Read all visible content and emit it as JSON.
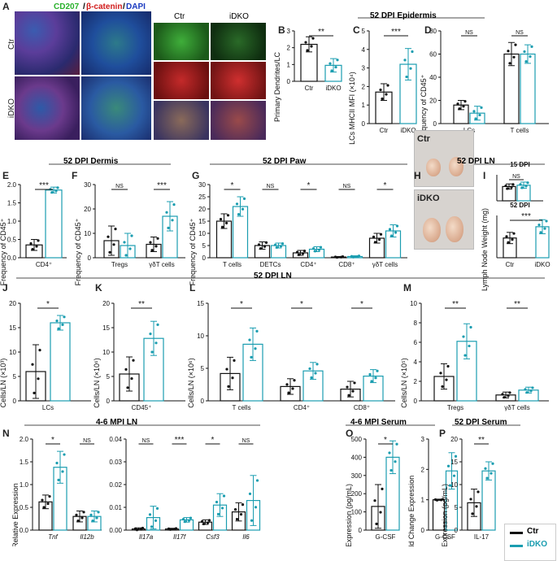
{
  "figure": {
    "panels": {
      "A": "A",
      "B": "B",
      "C": "C",
      "D": "D",
      "E": "E",
      "F": "F",
      "G": "G",
      "H": "H",
      "I": "I",
      "J": "J",
      "K": "K",
      "L": "L",
      "M": "M",
      "N": "N",
      "O": "O",
      "P": "P"
    },
    "section_headers": {
      "epidermis": "52 DPI Epidermis",
      "dermis": "52 DPI Dermis",
      "paw": "52 DPI Paw",
      "ln_h": "52 DPI LN",
      "ln_row": "52 DPI LN",
      "mpi_ln": "4-6 MPI LN",
      "mpi_serum": "4-6 MPI Serum",
      "serum_p": "52 DPI Serum"
    },
    "microscopy": {
      "stain_cd207": "CD207",
      "stain_bcat": "β-catenin",
      "stain_dapi": "DAPI",
      "row_ctr": "Ctr",
      "row_idko": "iDKO",
      "col_ctr": "Ctr",
      "col_idko": "iDKO"
    },
    "photos": {
      "ctr": "Ctr",
      "idko": "iDKO"
    },
    "legend": {
      "ctr": "Ctr",
      "idko": "iDKO",
      "ctr_color": "#111111",
      "idko_color": "#1a9db0"
    }
  },
  "chart_data": [
    {
      "id": "B",
      "type": "bar",
      "ylabel": "Primary Dendrites/LC",
      "ylim": [
        0,
        3
      ],
      "yticks": [
        0,
        1,
        2,
        3
      ],
      "categories": [
        "Ctr",
        "iDKO"
      ],
      "series": [
        {
          "name": "Ctr",
          "values": [
            2.2,
            null
          ]
        },
        {
          "name": "iDKO",
          "values": [
            null,
            0.95
          ]
        }
      ],
      "errors": [
        0.45,
        0.4
      ],
      "sig": [
        {
          "i": 0,
          "j": 1,
          "text": "**"
        }
      ]
    },
    {
      "id": "C",
      "type": "bar",
      "ylabel": "LCs MHCII MFI (×10⁴)",
      "ylim": [
        0,
        5
      ],
      "yticks": [
        0,
        1,
        2,
        3,
        4,
        5
      ],
      "categories": [
        "Ctr",
        "iDKO"
      ],
      "series": [
        {
          "name": "Ctr",
          "values": [
            1.7,
            null
          ]
        },
        {
          "name": "iDKO",
          "values": [
            null,
            3.2
          ]
        }
      ],
      "errors": [
        0.45,
        0.85
      ],
      "sig": [
        {
          "i": 0,
          "j": 1,
          "text": "***"
        }
      ]
    },
    {
      "id": "D",
      "type": "bar",
      "ylabel": "Frequency of CD45⁺",
      "ylim": [
        0,
        80
      ],
      "yticks": [
        0,
        20,
        40,
        60,
        80
      ],
      "categories": [
        "LCs",
        "T cells"
      ],
      "series": [
        {
          "name": "Ctr",
          "values": [
            16,
            60
          ]
        },
        {
          "name": "iDKO",
          "values": [
            9,
            60
          ]
        }
      ],
      "errors": [
        [
          4,
          10
        ],
        [
          6,
          8
        ]
      ],
      "sig": [
        {
          "cat": 0,
          "text": "NS"
        },
        {
          "cat": 1,
          "text": "NS"
        }
      ]
    },
    {
      "id": "E",
      "type": "bar",
      "ylabel": "Frequency of CD45⁺",
      "ylim": [
        0,
        2
      ],
      "yticks": [
        0.0,
        0.5,
        1.0,
        1.5,
        2.0
      ],
      "categories": [
        "CD4⁺"
      ],
      "series": [
        {
          "name": "Ctr",
          "values": [
            0.35
          ]
        },
        {
          "name": "iDKO",
          "values": [
            1.85
          ]
        }
      ],
      "errors": [
        [
          0.15
        ],
        [
          0.08
        ]
      ],
      "sig": [
        {
          "cat": 0,
          "text": "***"
        }
      ]
    },
    {
      "id": "F",
      "type": "bar",
      "ylabel": "Frequency of CD45⁺",
      "ylim": [
        0,
        30
      ],
      "yticks": [
        0,
        10,
        20,
        30
      ],
      "categories": [
        "Tregs",
        "γδT cells"
      ],
      "series": [
        {
          "name": "Ctr",
          "values": [
            7,
            5.5
          ]
        },
        {
          "name": "iDKO",
          "values": [
            5,
            17
          ]
        }
      ],
      "errors": [
        [
          6,
          3
        ],
        [
          5,
          6
        ]
      ],
      "sig": [
        {
          "cat": 0,
          "text": "NS"
        },
        {
          "cat": 1,
          "text": "***"
        }
      ]
    },
    {
      "id": "G",
      "type": "bar",
      "ylabel": "Frequency of CD45⁺",
      "ylim": [
        0,
        30
      ],
      "yticks": [
        0,
        5,
        10,
        15,
        20,
        25,
        30
      ],
      "categories": [
        "T cells",
        "DETCs",
        "CD4⁺",
        "CD8⁺",
        "γδT cells"
      ],
      "series": [
        {
          "name": "Ctr",
          "values": [
            15,
            5,
            2,
            0.3,
            8
          ]
        },
        {
          "name": "iDKO",
          "values": [
            21,
            5,
            3.5,
            0.5,
            11
          ]
        }
      ],
      "errors": [
        [
          3,
          1.5,
          1,
          0.2,
          2
        ],
        [
          4,
          1,
          1,
          0.3,
          2.5
        ]
      ],
      "sig": [
        {
          "cat": 0,
          "text": "*"
        },
        {
          "cat": 1,
          "text": "NS"
        },
        {
          "cat": 2,
          "text": "*"
        },
        {
          "cat": 3,
          "text": "NS"
        },
        {
          "cat": 4,
          "text": "*"
        }
      ]
    },
    {
      "id": "I15",
      "type": "bar",
      "title": "15 DPI",
      "ylim": [
        0,
        10
      ],
      "yticks": [],
      "categories": [
        ""
      ],
      "series": [
        {
          "name": "Ctr",
          "values": [
            5.5
          ]
        },
        {
          "name": "iDKO",
          "values": [
            6
          ]
        }
      ],
      "errors": [
        [
          1
        ],
        [
          1.2
        ]
      ],
      "sig": [
        {
          "cat": 0,
          "text": "NS"
        }
      ]
    },
    {
      "id": "I52",
      "type": "bar",
      "title": "52 DPI",
      "ylabel": "Lymph Node Weight (mg)",
      "ylim": [
        0,
        15
      ],
      "yticks": [],
      "categories": [
        "Ctr",
        "iDKO"
      ],
      "series": [
        {
          "name": "Ctr",
          "values": [
            7,
            null
          ]
        },
        {
          "name": "iDKO",
          "values": [
            null,
            11
          ]
        }
      ],
      "errors": [
        2,
        2.5
      ],
      "sig": [
        {
          "i": 0,
          "j": 1,
          "text": "***"
        }
      ]
    },
    {
      "id": "J",
      "type": "bar",
      "ylabel": "Cells/LN (×10³)",
      "ylim": [
        0,
        20
      ],
      "yticks": [
        0,
        5,
        10,
        15,
        20
      ],
      "categories": [
        "LCs"
      ],
      "series": [
        {
          "name": "Ctr",
          "values": [
            6
          ]
        },
        {
          "name": "iDKO",
          "values": [
            16
          ]
        }
      ],
      "errors": [
        [
          5.5
        ],
        [
          1.5
        ]
      ],
      "sig": [
        {
          "cat": 0,
          "text": "*"
        }
      ]
    },
    {
      "id": "K",
      "type": "bar",
      "ylabel": "Cells/LN (×10⁶)",
      "ylim": [
        0,
        20
      ],
      "yticks": [
        0,
        5,
        10,
        15,
        20
      ],
      "categories": [
        "CD45⁺"
      ],
      "series": [
        {
          "name": "Ctr",
          "values": [
            5.5
          ]
        },
        {
          "name": "iDKO",
          "values": [
            12.8
          ]
        }
      ],
      "errors": [
        [
          3.5
        ],
        [
          3.5
        ]
      ],
      "sig": [
        {
          "cat": 0,
          "text": "**"
        }
      ]
    },
    {
      "id": "L",
      "type": "bar",
      "ylabel": "Cells/LN (×10⁶)",
      "ylim": [
        0,
        15
      ],
      "yticks": [
        0,
        5,
        10,
        15
      ],
      "categories": [
        "T cells",
        "CD4⁺",
        "CD8⁺"
      ],
      "series": [
        {
          "name": "Ctr",
          "values": [
            4.2,
            2.2,
            1.8
          ]
        },
        {
          "name": "iDKO",
          "values": [
            8.7,
            4.6,
            3.8
          ]
        }
      ],
      "errors": [
        [
          2.5,
          1.2,
          1.2
        ],
        [
          2.5,
          1.3,
          1.0
        ]
      ],
      "sig": [
        {
          "cat": 0,
          "text": "*"
        },
        {
          "cat": 1,
          "text": "*"
        },
        {
          "cat": 2,
          "text": "*"
        }
      ]
    },
    {
      "id": "M",
      "type": "bar",
      "ylabel": "Cells/LN (×10⁵)",
      "ylim": [
        0,
        10
      ],
      "yticks": [
        0,
        2,
        4,
        6,
        8,
        10
      ],
      "categories": [
        "Tregs",
        "γδT cells"
      ],
      "series": [
        {
          "name": "Ctr",
          "values": [
            2.5,
            0.6
          ]
        },
        {
          "name": "iDKO",
          "values": [
            6.1,
            1.1
          ]
        }
      ],
      "errors": [
        [
          1.3,
          0.3
        ],
        [
          1.8,
          0.3
        ]
      ],
      "sig": [
        {
          "cat": 0,
          "text": "**"
        },
        {
          "cat": 1,
          "text": "**"
        }
      ]
    },
    {
      "id": "N1",
      "type": "bar",
      "ylabel": "Relative Expression",
      "ylim": [
        0,
        2.0
      ],
      "yticks": [
        0.0,
        0.5,
        1.0,
        1.5,
        2.0
      ],
      "categories": [
        "Tnf",
        "Il12b"
      ],
      "series": [
        {
          "name": "Ctr",
          "values": [
            0.62,
            0.3
          ]
        },
        {
          "name": "iDKO",
          "values": [
            1.38,
            0.3
          ]
        }
      ],
      "errors": [
        [
          0.15,
          0.12
        ],
        [
          0.35,
          0.12
        ]
      ],
      "sig": [
        {
          "cat": 0,
          "text": "*"
        },
        {
          "cat": 1,
          "text": "NS"
        }
      ]
    },
    {
      "id": "N2",
      "type": "bar",
      "ylim": [
        0,
        0.04
      ],
      "yticks": [
        0.0,
        0.01,
        0.02,
        0.03,
        0.04
      ],
      "categories": [
        "Il17a",
        "Il17f",
        "Csf3",
        "Il6"
      ],
      "series": [
        {
          "name": "Ctr",
          "values": [
            0.0005,
            0.0005,
            0.0035,
            0.008
          ]
        },
        {
          "name": "iDKO",
          "values": [
            0.0055,
            0.0045,
            0.011,
            0.013
          ]
        }
      ],
      "errors": [
        [
          0.0005,
          0.0003,
          0.001,
          0.004
        ],
        [
          0.005,
          0.001,
          0.005,
          0.011
        ]
      ],
      "sig": [
        {
          "cat": 0,
          "text": "NS"
        },
        {
          "cat": 1,
          "text": "***"
        },
        {
          "cat": 2,
          "text": "*"
        },
        {
          "cat": 3,
          "text": "NS"
        }
      ]
    },
    {
      "id": "O1",
      "type": "bar",
      "ylabel": "Expression (pg/mL)",
      "ylim": [
        0,
        500
      ],
      "yticks": [
        0,
        100,
        200,
        300,
        400,
        500
      ],
      "categories": [
        "G-CSF"
      ],
      "series": [
        {
          "name": "Ctr",
          "values": [
            130
          ]
        },
        {
          "name": "iDKO",
          "values": [
            400
          ]
        }
      ],
      "errors": [
        [
          120
        ],
        [
          90
        ]
      ],
      "sig": [
        {
          "cat": 0,
          "text": "*"
        }
      ]
    },
    {
      "id": "O2",
      "type": "bar",
      "ylabel": "Fold Change Expression",
      "ylim": [
        0,
        3
      ],
      "yticks": [
        0,
        1,
        2,
        3
      ],
      "categories": [
        "G-CSF"
      ],
      "series": [
        {
          "name": "Ctr",
          "values": [
            1.0
          ]
        },
        {
          "name": "iDKO",
          "values": [
            1.95
          ]
        }
      ],
      "errors": [
        [
          0.02
        ],
        [
          0.6
        ]
      ],
      "sig": []
    },
    {
      "id": "P",
      "type": "bar",
      "ylabel": "Expression (pg/mL)",
      "ylim": [
        0,
        20
      ],
      "yticks": [
        0,
        5,
        10,
        15,
        20
      ],
      "categories": [
        "IL-17"
      ],
      "series": [
        {
          "name": "Ctr",
          "values": [
            6
          ]
        },
        {
          "name": "iDKO",
          "values": [
            13
          ]
        }
      ],
      "errors": [
        [
          3
        ],
        [
          2
        ]
      ],
      "sig": [
        {
          "cat": 0,
          "text": "**"
        }
      ]
    }
  ]
}
